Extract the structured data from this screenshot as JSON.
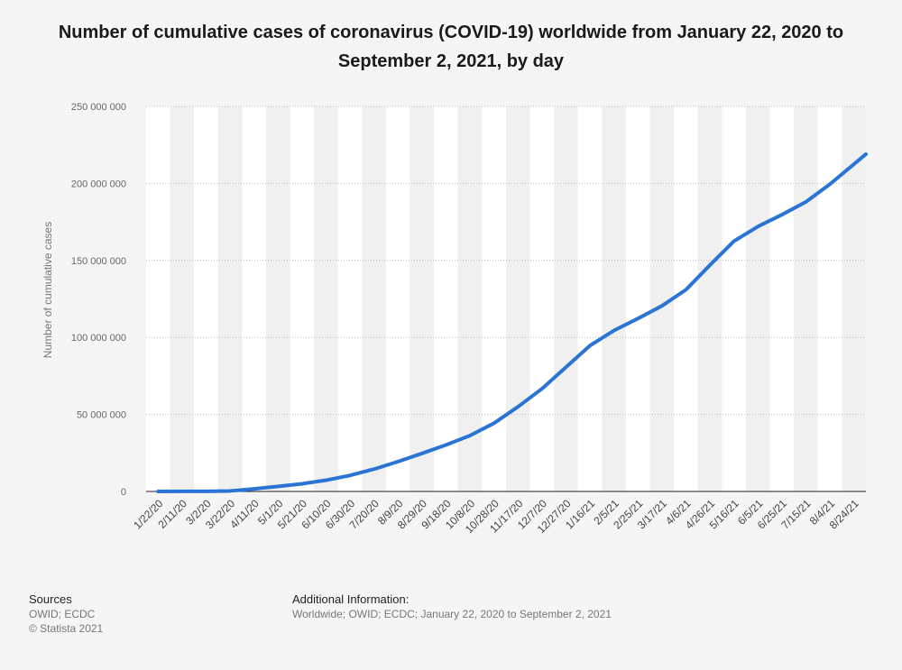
{
  "chart_data": {
    "type": "line",
    "title": "Number of cumulative cases of coronavirus (COVID-19) worldwide from January 22, 2020 to September 2, 2021, by day",
    "ylabel": "Number of cumulative cases",
    "xlabel": "",
    "ylim": [
      0,
      250000000
    ],
    "y_ticks": [
      0,
      50000000,
      100000000,
      150000000,
      200000000,
      250000000
    ],
    "y_tick_labels": [
      "0",
      "50 000 000",
      "100 000 000",
      "150 000 000",
      "200 000 000",
      "250 000 000"
    ],
    "x_tick_labels": [
      "1/22/20",
      "2/11/20",
      "3/2/20",
      "3/22/20",
      "4/11/20",
      "5/1/20",
      "5/21/20",
      "6/10/20",
      "6/30/20",
      "7/20/20",
      "8/9/20",
      "8/29/20",
      "9/18/20",
      "10/8/20",
      "10/28/20",
      "11/17/20",
      "12/7/20",
      "12/27/20",
      "1/16/21",
      "2/5/21",
      "2/25/21",
      "3/17/21",
      "4/6/21",
      "4/26/21",
      "5/16/21",
      "6/5/21",
      "6/25/21",
      "7/15/21",
      "8/4/21",
      "8/24/21"
    ],
    "grid": true,
    "series": [
      {
        "color": "#2a74d5",
        "x": [
          "1/22/20",
          "2/11/20",
          "3/2/20",
          "3/22/20",
          "4/11/20",
          "5/1/20",
          "5/21/20",
          "6/10/20",
          "6/30/20",
          "7/20/20",
          "8/9/20",
          "8/29/20",
          "9/18/20",
          "10/8/20",
          "10/28/20",
          "11/17/20",
          "12/7/20",
          "12/27/20",
          "1/16/21",
          "2/5/21",
          "2/25/21",
          "3/17/21",
          "4/6/21",
          "4/26/21",
          "5/16/21",
          "6/5/21",
          "6/25/21",
          "7/15/21",
          "8/4/21",
          "8/24/21",
          "9/2/21"
        ],
        "values": [
          600,
          43000,
          89000,
          330000,
          1700000,
          3300000,
          5000000,
          7300000,
          10400000,
          14500000,
          19400000,
          24700000,
          30200000,
          36300000,
          44300000,
          55000000,
          66700000,
          80700000,
          94700000,
          104500000,
          112300000,
          120500000,
          131000000,
          147000000,
          162500000,
          172000000,
          179700000,
          188000000,
          199500000,
          212500000,
          219000000
        ]
      }
    ]
  },
  "footer": {
    "sources_heading": "Sources",
    "sources_line1": "OWID; ECDC",
    "sources_line2": "© Statista 2021",
    "addinfo_heading": "Additional Information:",
    "addinfo_text": "Worldwide; OWID; ECDC; January 22, 2020 to September 2, 2021"
  }
}
